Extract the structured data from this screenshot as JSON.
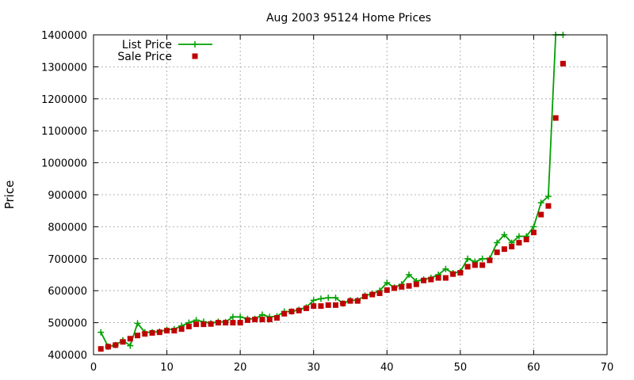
{
  "chart_data": {
    "type": "line",
    "title": "Aug 2003 95124 Home Prices",
    "xlabel": "",
    "ylabel": "Price",
    "xlim": [
      0,
      70
    ],
    "ylim": [
      400000,
      1400000
    ],
    "xticks": [
      0,
      10,
      20,
      30,
      40,
      50,
      60,
      70
    ],
    "yticks": [
      400000,
      500000,
      600000,
      700000,
      800000,
      900000,
      1000000,
      1100000,
      1200000,
      1300000,
      1400000
    ],
    "grid": true,
    "legend_position": "top-left",
    "colors": {
      "list": "#00a000",
      "sale": "#c00000"
    },
    "series": [
      {
        "name": "List Price",
        "style": "line+cross",
        "x": [
          1,
          2,
          3,
          4,
          5,
          6,
          7,
          8,
          9,
          10,
          11,
          12,
          13,
          14,
          15,
          16,
          17,
          18,
          19,
          20,
          21,
          22,
          23,
          24,
          25,
          26,
          27,
          28,
          29,
          30,
          31,
          32,
          33,
          34,
          35,
          36,
          37,
          38,
          39,
          40,
          41,
          42,
          43,
          44,
          45,
          46,
          47,
          48,
          49,
          50,
          51,
          52,
          53,
          54,
          55,
          56,
          57,
          58,
          59,
          60,
          61,
          62,
          63,
          64
        ],
        "values": [
          470000,
          425000,
          430000,
          445000,
          428000,
          498000,
          470000,
          470000,
          472000,
          478000,
          480000,
          490000,
          500000,
          508000,
          503000,
          498000,
          503000,
          502000,
          518000,
          518000,
          512000,
          512000,
          525000,
          518000,
          520000,
          535000,
          535000,
          540000,
          548000,
          570000,
          575000,
          578000,
          578000,
          560000,
          570000,
          570000,
          585000,
          590000,
          600000,
          625000,
          610000,
          620000,
          650000,
          630000,
          635000,
          640000,
          650000,
          668000,
          655000,
          660000,
          700000,
          690000,
          700000,
          700000,
          750000,
          775000,
          750000,
          770000,
          770000,
          800000,
          875000,
          895000,
          1400000,
          1400000
        ]
      },
      {
        "name": "Sale Price",
        "style": "square-points",
        "x": [
          1,
          2,
          3,
          4,
          5,
          6,
          7,
          8,
          9,
          10,
          11,
          12,
          13,
          14,
          15,
          16,
          17,
          18,
          19,
          20,
          21,
          22,
          23,
          24,
          25,
          26,
          27,
          28,
          29,
          30,
          31,
          32,
          33,
          34,
          35,
          36,
          37,
          38,
          39,
          40,
          41,
          42,
          43,
          44,
          45,
          46,
          47,
          48,
          49,
          50,
          51,
          52,
          53,
          54,
          55,
          56,
          57,
          58,
          59,
          60,
          61,
          62,
          63,
          64
        ],
        "values": [
          418000,
          425000,
          430000,
          440000,
          450000,
          460000,
          465000,
          468000,
          470000,
          475000,
          475000,
          480000,
          488000,
          495000,
          495000,
          496000,
          500000,
          500000,
          500000,
          500000,
          508000,
          510000,
          510000,
          510000,
          515000,
          528000,
          535000,
          538000,
          545000,
          552000,
          552000,
          555000,
          555000,
          560000,
          568000,
          568000,
          582000,
          588000,
          592000,
          602000,
          608000,
          612000,
          615000,
          620000,
          632000,
          635000,
          640000,
          640000,
          652000,
          656000,
          675000,
          680000,
          680000,
          695000,
          720000,
          730000,
          738000,
          750000,
          760000,
          782000,
          838000,
          865000,
          1140000,
          1310000
        ]
      }
    ]
  }
}
